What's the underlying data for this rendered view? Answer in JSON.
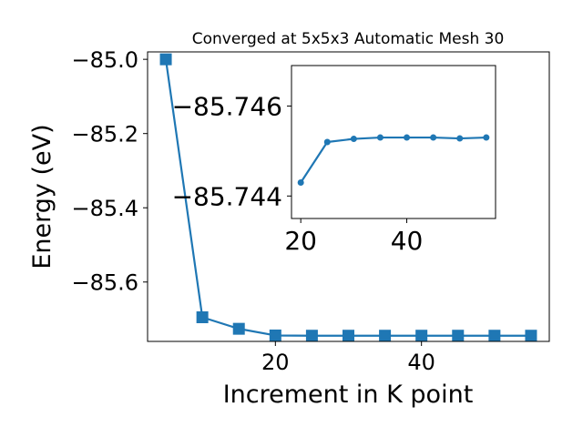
{
  "chart_data": [
    {
      "type": "line",
      "title": "Converged at 5x5x3 Automatic Mesh 30",
      "xlabel": "Increment in K point",
      "ylabel": "Energy (eV)",
      "xlim": [
        2.5,
        57.5
      ],
      "ylim": [
        -85.76,
        -84.98
      ],
      "xticks": [
        20,
        40
      ],
      "xtick_labels": [
        "20",
        "40"
      ],
      "yticks": [
        -85.0,
        -85.2,
        -85.4,
        -85.6
      ],
      "ytick_labels": [
        "−85.0",
        "−85.2",
        "−85.4",
        "−85.6"
      ],
      "grid": false,
      "marker": "square",
      "color": "#1f77b4",
      "series": [
        {
          "x": [
            5,
            10,
            15,
            20,
            25,
            30,
            35,
            40,
            45,
            50,
            55
          ],
          "y": [
            -85.0,
            -85.695,
            -85.726,
            -85.744,
            -85.7446,
            -85.7446,
            -85.7446,
            -85.7446,
            -85.7446,
            -85.7446,
            -85.7446
          ]
        }
      ]
    },
    {
      "type": "line",
      "title": "",
      "xlabel": "",
      "ylabel": "",
      "xlim": [
        18.25,
        56.75
      ],
      "ylim": [
        -85.7435,
        -85.7469
      ],
      "xticks": [
        20,
        40
      ],
      "xtick_labels": [
        "20",
        "40"
      ],
      "yticks": [
        -85.746,
        -85.744
      ],
      "ytick_labels": [
        "−85.746",
        "−85.744"
      ],
      "grid": false,
      "marker": "circle",
      "color": "#1f77b4",
      "series": [
        {
          "x": [
            20,
            25,
            30,
            35,
            40,
            45,
            50,
            55
          ],
          "y": [
            -85.7443,
            -85.7452,
            -85.74527,
            -85.7453,
            -85.7453,
            -85.7453,
            -85.74528,
            -85.7453
          ]
        }
      ]
    }
  ]
}
